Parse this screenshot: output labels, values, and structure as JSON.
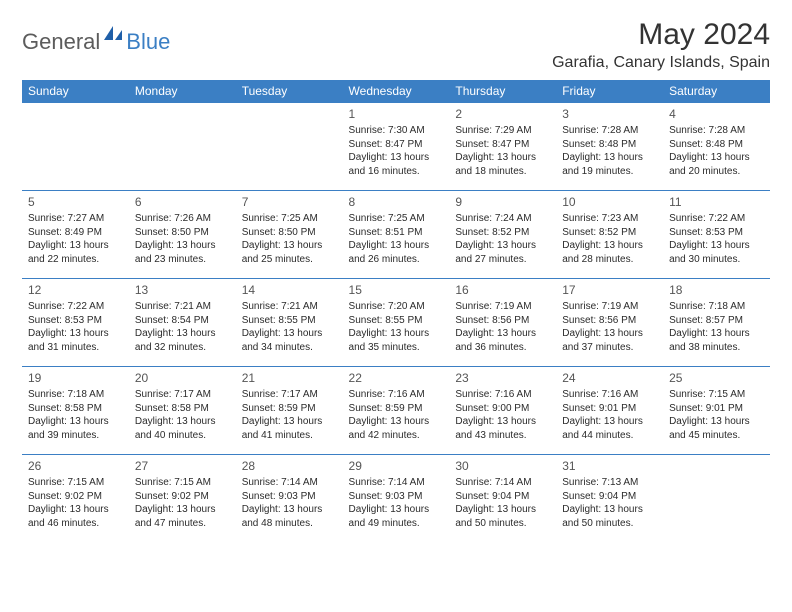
{
  "logo": {
    "general": "General",
    "blue": "Blue"
  },
  "title": "May 2024",
  "location": "Garafia, Canary Islands, Spain",
  "colors": {
    "header_bg": "#3b7fc4",
    "header_text": "#ffffff",
    "border": "#3b7fc4",
    "text": "#2b2b2b",
    "daynum": "#555555",
    "logo_gray": "#5c5c5c",
    "logo_blue": "#3b7fc4"
  },
  "weekdays": [
    "Sunday",
    "Monday",
    "Tuesday",
    "Wednesday",
    "Thursday",
    "Friday",
    "Saturday"
  ],
  "weeks": [
    [
      null,
      null,
      null,
      {
        "d": "1",
        "sr": "7:30 AM",
        "ss": "8:47 PM",
        "dl": "13 hours and 16 minutes."
      },
      {
        "d": "2",
        "sr": "7:29 AM",
        "ss": "8:47 PM",
        "dl": "13 hours and 18 minutes."
      },
      {
        "d": "3",
        "sr": "7:28 AM",
        "ss": "8:48 PM",
        "dl": "13 hours and 19 minutes."
      },
      {
        "d": "4",
        "sr": "7:28 AM",
        "ss": "8:48 PM",
        "dl": "13 hours and 20 minutes."
      }
    ],
    [
      {
        "d": "5",
        "sr": "7:27 AM",
        "ss": "8:49 PM",
        "dl": "13 hours and 22 minutes."
      },
      {
        "d": "6",
        "sr": "7:26 AM",
        "ss": "8:50 PM",
        "dl": "13 hours and 23 minutes."
      },
      {
        "d": "7",
        "sr": "7:25 AM",
        "ss": "8:50 PM",
        "dl": "13 hours and 25 minutes."
      },
      {
        "d": "8",
        "sr": "7:25 AM",
        "ss": "8:51 PM",
        "dl": "13 hours and 26 minutes."
      },
      {
        "d": "9",
        "sr": "7:24 AM",
        "ss": "8:52 PM",
        "dl": "13 hours and 27 minutes."
      },
      {
        "d": "10",
        "sr": "7:23 AM",
        "ss": "8:52 PM",
        "dl": "13 hours and 28 minutes."
      },
      {
        "d": "11",
        "sr": "7:22 AM",
        "ss": "8:53 PM",
        "dl": "13 hours and 30 minutes."
      }
    ],
    [
      {
        "d": "12",
        "sr": "7:22 AM",
        "ss": "8:53 PM",
        "dl": "13 hours and 31 minutes."
      },
      {
        "d": "13",
        "sr": "7:21 AM",
        "ss": "8:54 PM",
        "dl": "13 hours and 32 minutes."
      },
      {
        "d": "14",
        "sr": "7:21 AM",
        "ss": "8:55 PM",
        "dl": "13 hours and 34 minutes."
      },
      {
        "d": "15",
        "sr": "7:20 AM",
        "ss": "8:55 PM",
        "dl": "13 hours and 35 minutes."
      },
      {
        "d": "16",
        "sr": "7:19 AM",
        "ss": "8:56 PM",
        "dl": "13 hours and 36 minutes."
      },
      {
        "d": "17",
        "sr": "7:19 AM",
        "ss": "8:56 PM",
        "dl": "13 hours and 37 minutes."
      },
      {
        "d": "18",
        "sr": "7:18 AM",
        "ss": "8:57 PM",
        "dl": "13 hours and 38 minutes."
      }
    ],
    [
      {
        "d": "19",
        "sr": "7:18 AM",
        "ss": "8:58 PM",
        "dl": "13 hours and 39 minutes."
      },
      {
        "d": "20",
        "sr": "7:17 AM",
        "ss": "8:58 PM",
        "dl": "13 hours and 40 minutes."
      },
      {
        "d": "21",
        "sr": "7:17 AM",
        "ss": "8:59 PM",
        "dl": "13 hours and 41 minutes."
      },
      {
        "d": "22",
        "sr": "7:16 AM",
        "ss": "8:59 PM",
        "dl": "13 hours and 42 minutes."
      },
      {
        "d": "23",
        "sr": "7:16 AM",
        "ss": "9:00 PM",
        "dl": "13 hours and 43 minutes."
      },
      {
        "d": "24",
        "sr": "7:16 AM",
        "ss": "9:01 PM",
        "dl": "13 hours and 44 minutes."
      },
      {
        "d": "25",
        "sr": "7:15 AM",
        "ss": "9:01 PM",
        "dl": "13 hours and 45 minutes."
      }
    ],
    [
      {
        "d": "26",
        "sr": "7:15 AM",
        "ss": "9:02 PM",
        "dl": "13 hours and 46 minutes."
      },
      {
        "d": "27",
        "sr": "7:15 AM",
        "ss": "9:02 PM",
        "dl": "13 hours and 47 minutes."
      },
      {
        "d": "28",
        "sr": "7:14 AM",
        "ss": "9:03 PM",
        "dl": "13 hours and 48 minutes."
      },
      {
        "d": "29",
        "sr": "7:14 AM",
        "ss": "9:03 PM",
        "dl": "13 hours and 49 minutes."
      },
      {
        "d": "30",
        "sr": "7:14 AM",
        "ss": "9:04 PM",
        "dl": "13 hours and 50 minutes."
      },
      {
        "d": "31",
        "sr": "7:13 AM",
        "ss": "9:04 PM",
        "dl": "13 hours and 50 minutes."
      },
      null
    ]
  ],
  "labels": {
    "sunrise": "Sunrise:",
    "sunset": "Sunset:",
    "daylight": "Daylight:"
  }
}
